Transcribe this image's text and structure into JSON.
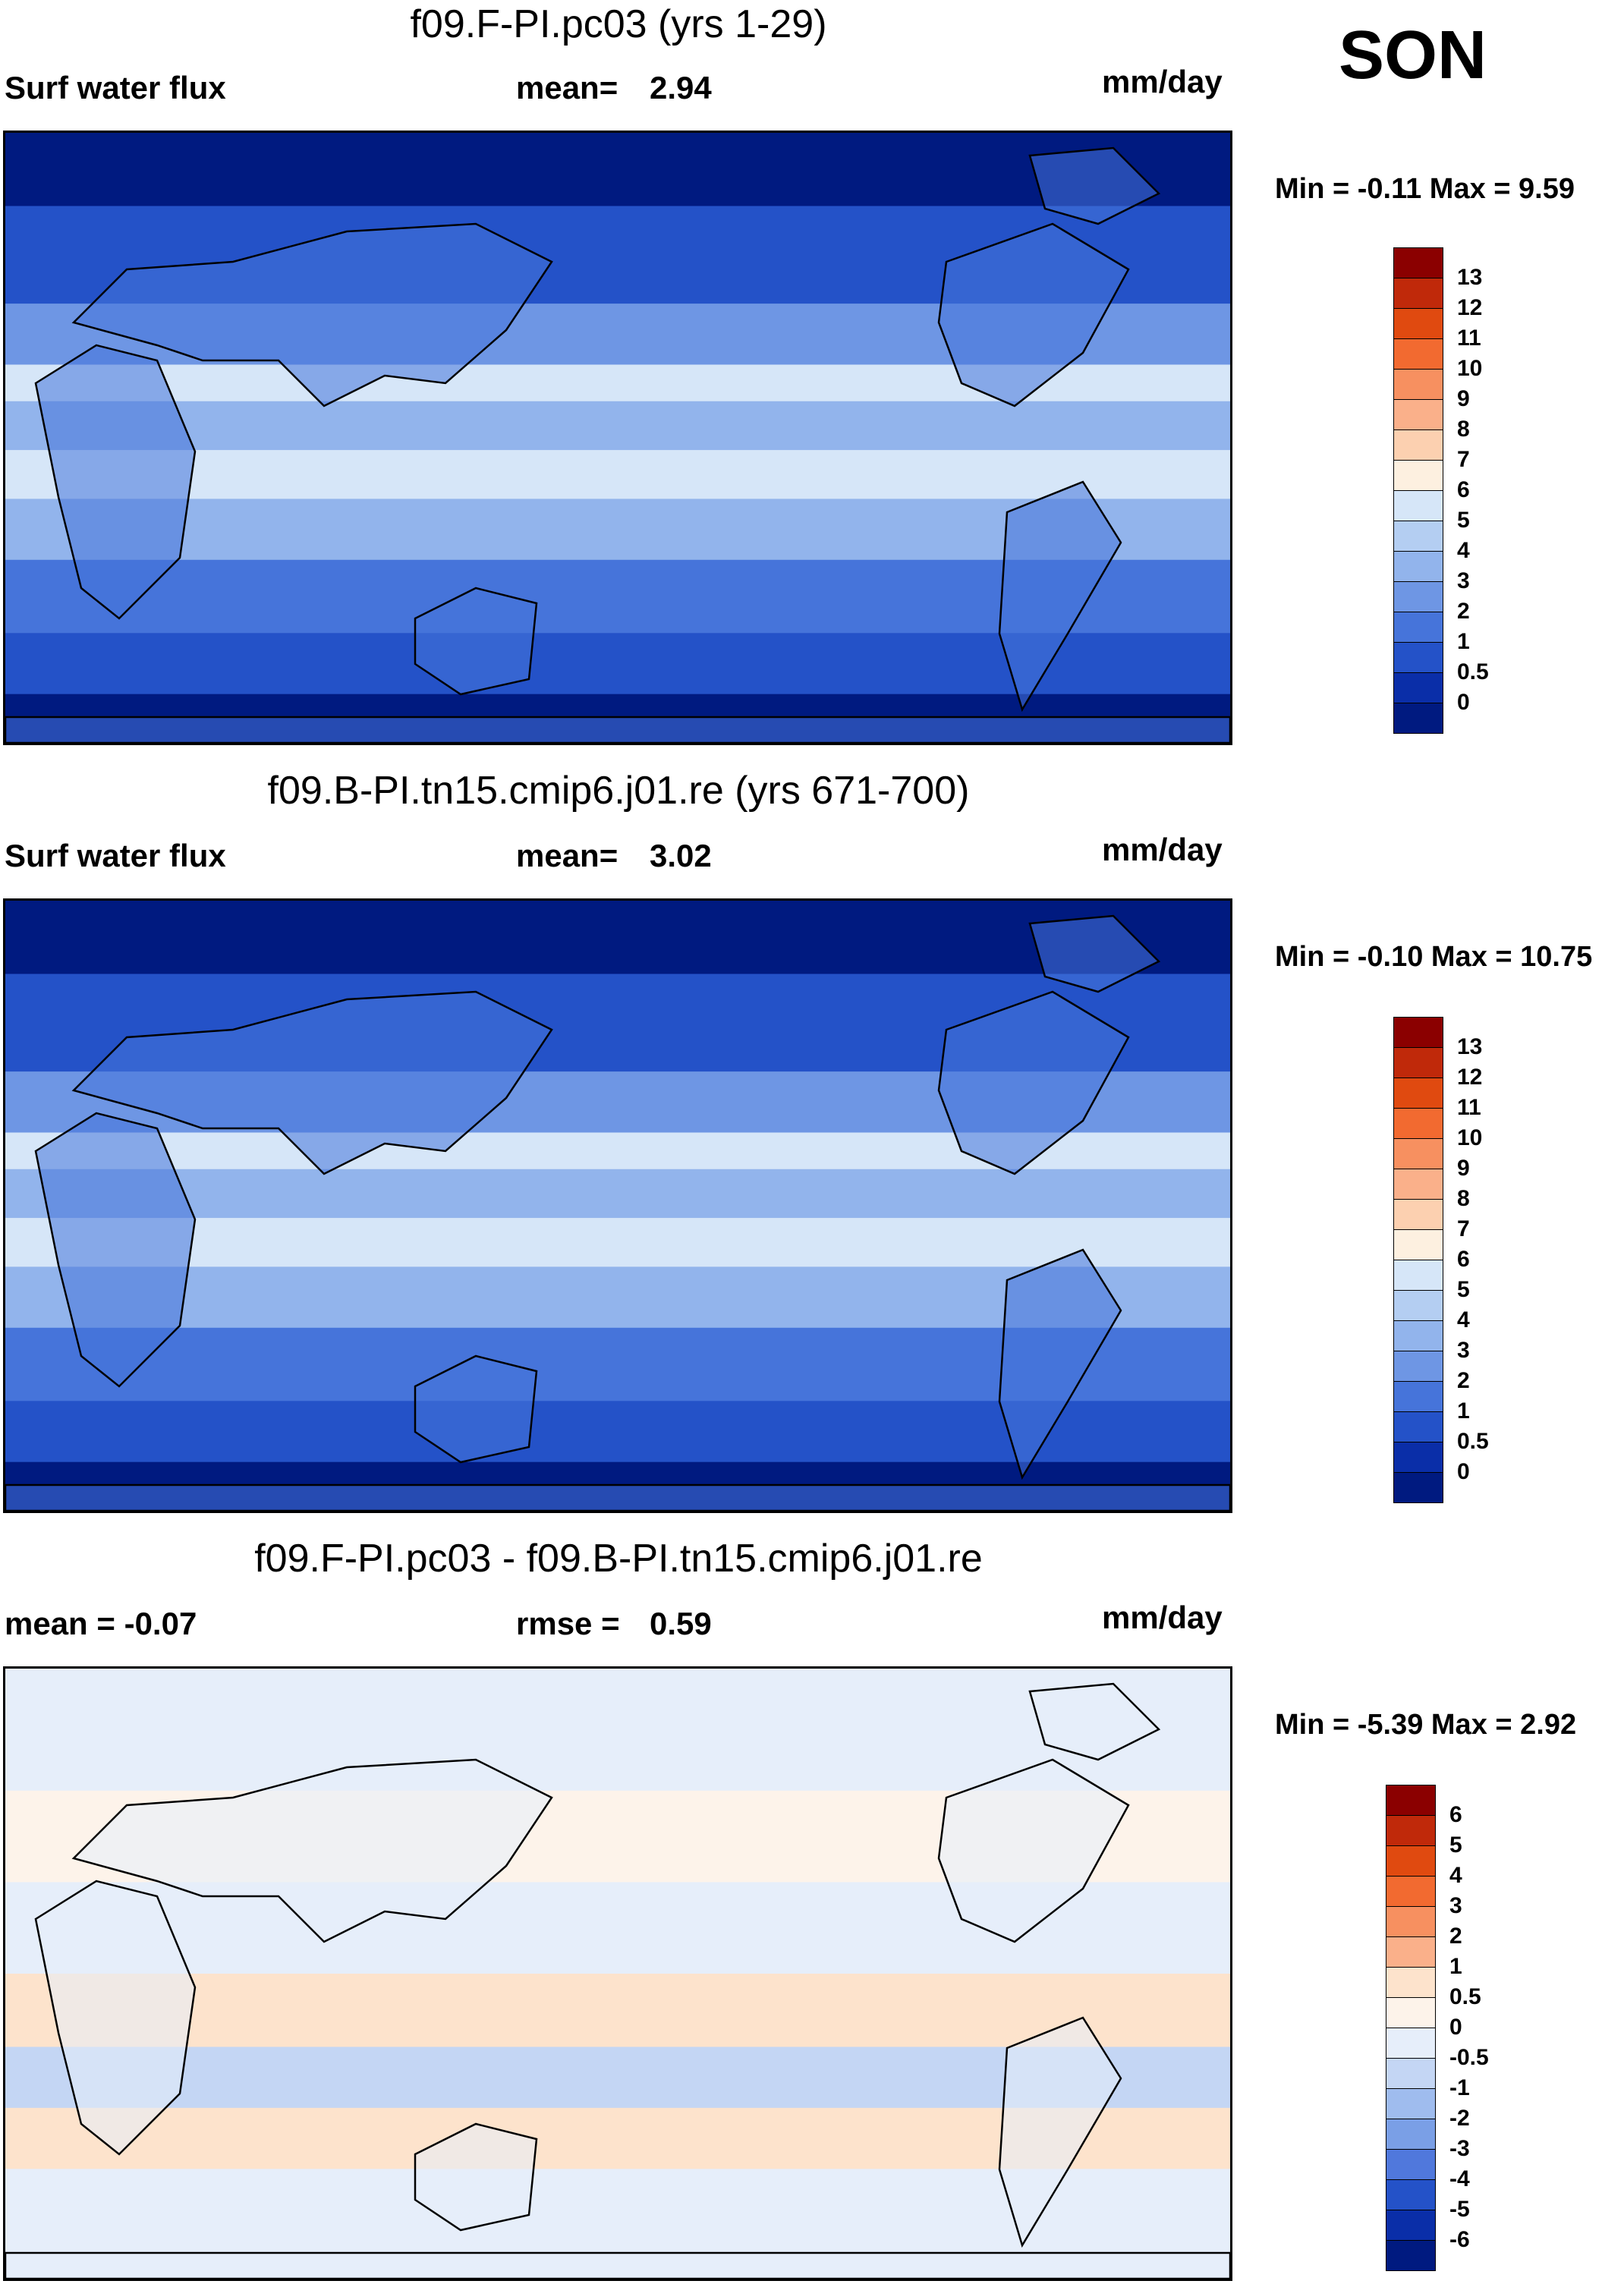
{
  "season": "SON",
  "panels": [
    {
      "title": "f09.F-PI.pc03 (yrs 1-29)",
      "left_label": "Surf water flux",
      "mid_label": "mean=",
      "mid_value": "2.94",
      "units": "mm/day",
      "minmax": "Min =  -0.11 Max =   9.59",
      "colorbar_levels": [
        "13",
        "12",
        "11",
        "10",
        "9",
        "8",
        "7",
        "6",
        "5",
        "4",
        "3",
        "2",
        "1",
        "0.5",
        "0"
      ],
      "colors": [
        "#8b0000",
        "#c0290a",
        "#e04a10",
        "#f26a30",
        "#f79060",
        "#fab08a",
        "#fcd0b0",
        "#fdf0e0",
        "#d6e6f8",
        "#b4cef2",
        "#92b4ec",
        "#6e96e4",
        "#4674da",
        "#2452c8",
        "#0a2ea8",
        "#001a80"
      ]
    },
    {
      "title": "f09.B-PI.tn15.cmip6.j01.re (yrs 671-700)",
      "left_label": "Surf water flux",
      "mid_label": "mean=",
      "mid_value": "3.02",
      "units": "mm/day",
      "minmax": "Min =  -0.10 Max =  10.75",
      "colorbar_levels": [
        "13",
        "12",
        "11",
        "10",
        "9",
        "8",
        "7",
        "6",
        "5",
        "4",
        "3",
        "2",
        "1",
        "0.5",
        "0"
      ],
      "colors": [
        "#8b0000",
        "#c0290a",
        "#e04a10",
        "#f26a30",
        "#f79060",
        "#fab08a",
        "#fcd0b0",
        "#fdf0e0",
        "#d6e6f8",
        "#b4cef2",
        "#92b4ec",
        "#6e96e4",
        "#4674da",
        "#2452c8",
        "#0a2ea8",
        "#001a80"
      ]
    },
    {
      "title": "f09.F-PI.pc03 - f09.B-PI.tn15.cmip6.j01.re",
      "left_label": "mean =  -0.07",
      "mid_label": "rmse =",
      "mid_value": "0.59",
      "units": "mm/day",
      "minmax": "Min =  -5.39 Max =   2.92",
      "colorbar_levels": [
        "6",
        "5",
        "4",
        "3",
        "2",
        "1",
        "0.5",
        "0",
        "-0.5",
        "-1",
        "-2",
        "-3",
        "-4",
        "-5",
        "-6"
      ],
      "colors": [
        "#8b0000",
        "#c0290a",
        "#e04a10",
        "#f26a30",
        "#f79060",
        "#fab08a",
        "#fde3cc",
        "#fdf3ea",
        "#e6eefa",
        "#c4d6f4",
        "#9fbcee",
        "#7a9fe6",
        "#5078dc",
        "#2452c8",
        "#0a2ea8",
        "#001a80"
      ]
    }
  ]
}
